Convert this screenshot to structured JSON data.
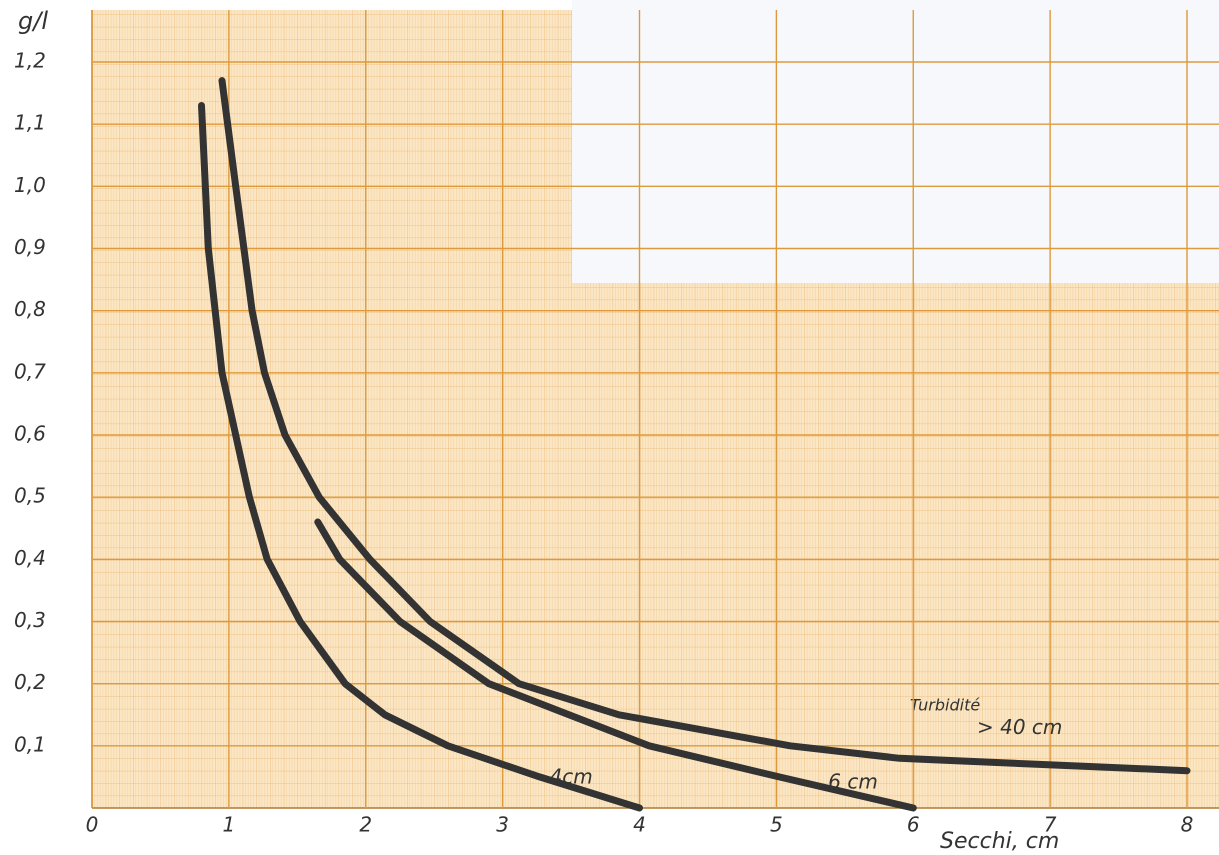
{
  "chart_data": {
    "type": "line",
    "ylabel": "g/l",
    "xlabel": "Secchi, cm",
    "annotation": "Turbidité",
    "xlim": [
      0,
      8
    ],
    "ylim": [
      0,
      1.2
    ],
    "xticks": [
      0,
      1,
      2,
      3,
      4,
      5,
      6,
      7,
      8
    ],
    "yticks": [
      {
        "value": 0.1,
        "label": "0,1"
      },
      {
        "value": 0.2,
        "label": "0,2"
      },
      {
        "value": 0.3,
        "label": "0,3"
      },
      {
        "value": 0.4,
        "label": "0,4"
      },
      {
        "value": 0.5,
        "label": "0,5"
      },
      {
        "value": 0.6,
        "label": "0,6"
      },
      {
        "value": 0.7,
        "label": "0,7"
      },
      {
        "value": 0.8,
        "label": "0,8"
      },
      {
        "value": 0.9,
        "label": "0,9"
      },
      {
        "value": 1.0,
        "label": "1,0"
      },
      {
        "value": 1.1,
        "label": "1,1"
      },
      {
        "value": 1.2,
        "label": "1,2"
      }
    ],
    "grid": true,
    "series": [
      {
        "name": "4cm",
        "color": "#333333",
        "x": [
          0.8,
          0.85,
          0.95,
          1.15,
          1.28,
          1.52,
          1.85,
          2.14,
          2.6,
          3.27,
          4.0
        ],
        "values": [
          1.13,
          0.9,
          0.7,
          0.5,
          0.4,
          0.3,
          0.2,
          0.15,
          0.1,
          0.05,
          0
        ]
      },
      {
        "name": "6 cm",
        "color": "#333333",
        "x": [
          1.65,
          1.81,
          2.25,
          2.9,
          4.07,
          5.02,
          6.0
        ],
        "values": [
          0.46,
          0.4,
          0.3,
          0.2,
          0.1,
          0.05,
          0
        ]
      },
      {
        "name": "> 40 cm",
        "color": "#333333",
        "x": [
          0.95,
          1.05,
          1.17,
          1.26,
          1.41,
          1.66,
          2.03,
          2.47,
          3.12,
          3.85,
          5.1,
          5.9,
          8.0
        ],
        "values": [
          1.17,
          1.0,
          0.8,
          0.7,
          0.6,
          0.5,
          0.4,
          0.3,
          0.2,
          0.15,
          0.1,
          0.08,
          0.06
        ]
      }
    ]
  }
}
